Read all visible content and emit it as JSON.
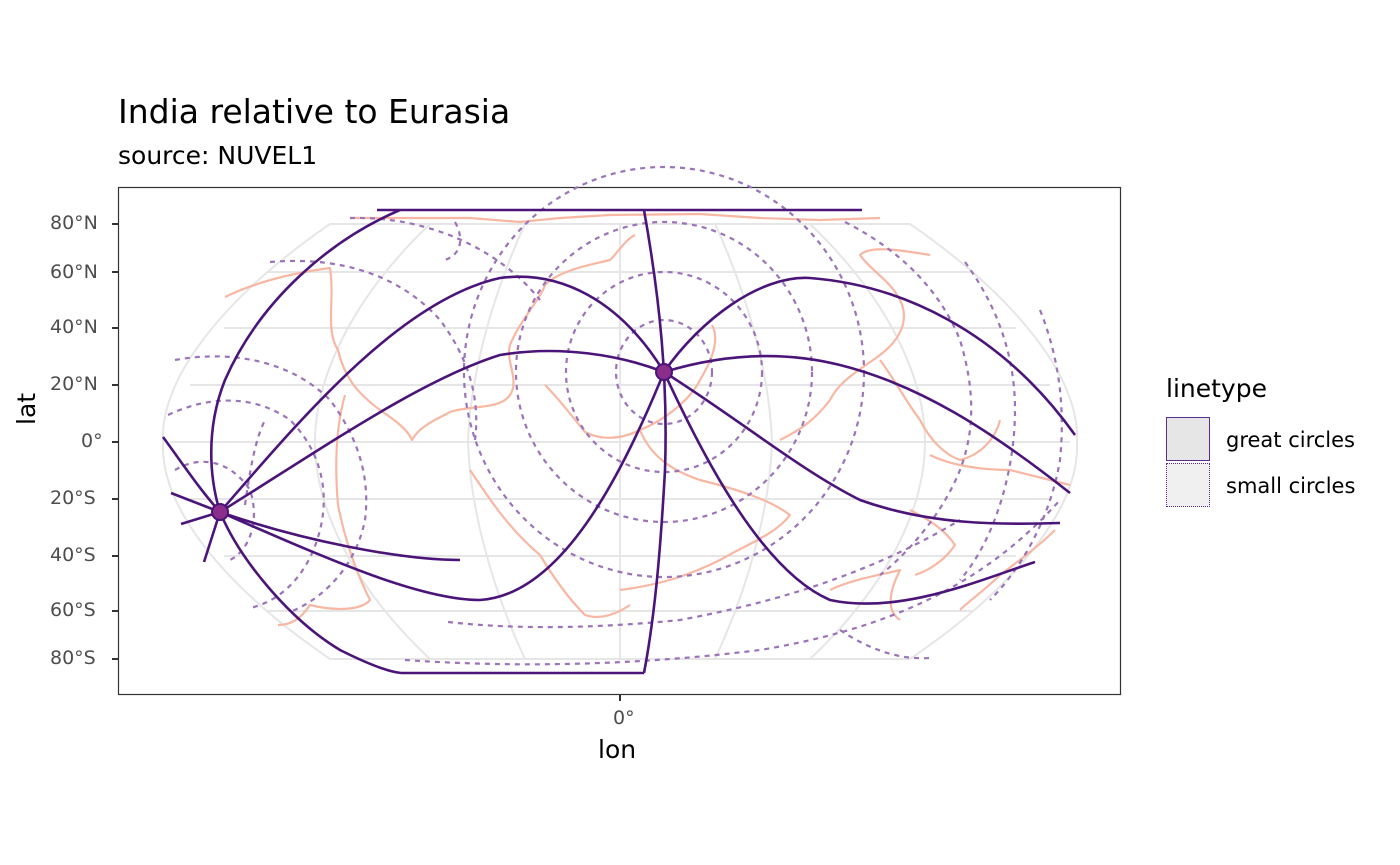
{
  "title": "India relative to Eurasia",
  "subtitle": "source: NUVEL1",
  "axes": {
    "xlabel": "lon",
    "ylabel": "lat",
    "x_ticks": [
      "0°"
    ],
    "y_ticks": [
      "80°N",
      "60°N",
      "40°N",
      "20°N",
      "0°",
      "20°S",
      "40°S",
      "60°S",
      "80°S"
    ]
  },
  "legend": {
    "title": "linetype",
    "items": [
      {
        "label": "great circles",
        "style": "solid"
      },
      {
        "label": "small circles",
        "style": "dotted"
      }
    ]
  },
  "colors": {
    "circles": "#4a1478",
    "small_circles": "#9b73b8",
    "coastline": "#f7b7a3",
    "graticule": "#e6e6e6",
    "pole_marker": "#8b2d8a"
  },
  "chart_data": {
    "type": "map",
    "projection": "Robinson",
    "euler_pole": {
      "lon": 27,
      "lat": 25
    },
    "antipole": {
      "lon": -153,
      "lat": -25
    }
  }
}
